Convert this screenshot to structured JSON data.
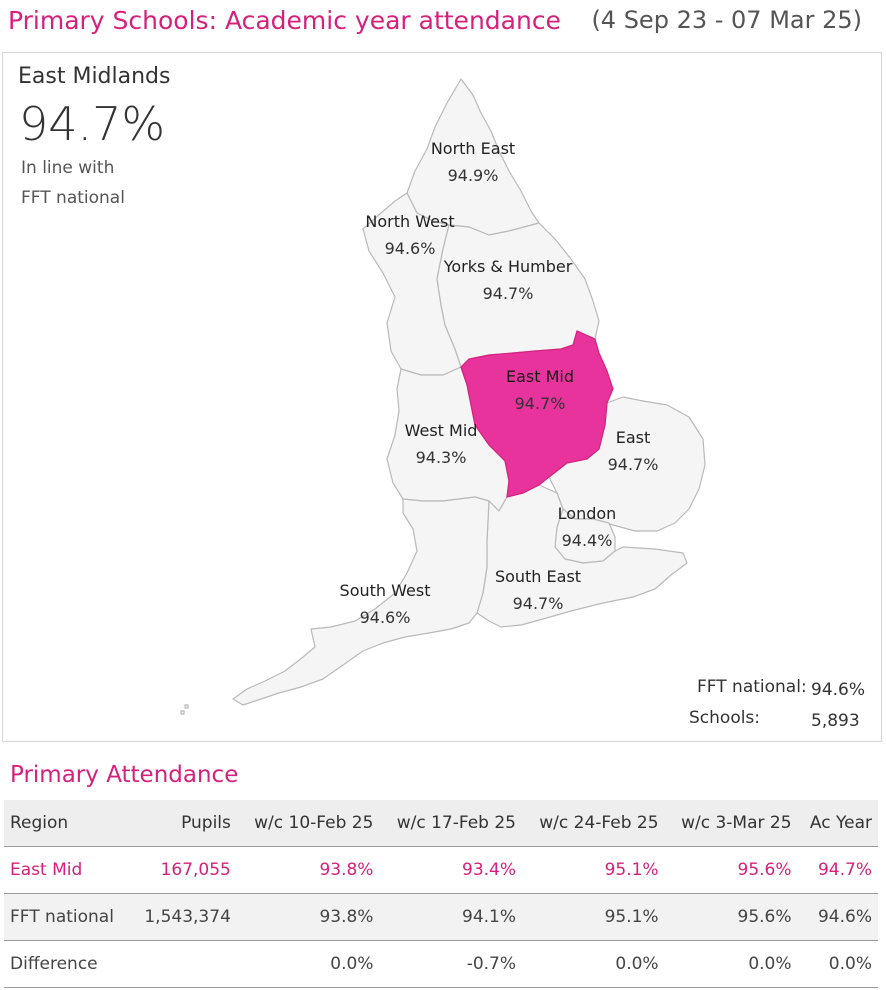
{
  "header": {
    "title": "Primary Schools: Academic year attendance",
    "date_range": "(4 Sep 23 - 07 Mar 25)"
  },
  "map_panel": {
    "selected_region": "East Midlands",
    "selected_value": "94.7%",
    "comparison_line1": "In line with",
    "comparison_line2": "FFT national",
    "highlight_color": "#e8339d",
    "regions": [
      {
        "id": "north-east",
        "name": "North East",
        "value": "94.9%"
      },
      {
        "id": "north-west",
        "name": "North West",
        "value": "94.6%"
      },
      {
        "id": "yorks-humber",
        "name": "Yorks & Humber",
        "value": "94.7%"
      },
      {
        "id": "east-mid",
        "name": "East Mid",
        "value": "94.7%"
      },
      {
        "id": "west-mid",
        "name": "West Mid",
        "value": "94.3%"
      },
      {
        "id": "east",
        "name": "East",
        "value": "94.7%"
      },
      {
        "id": "london",
        "name": "London",
        "value": "94.4%"
      },
      {
        "id": "south-east",
        "name": "South East",
        "value": "94.7%"
      },
      {
        "id": "south-west",
        "name": "South West",
        "value": "94.6%"
      }
    ],
    "footer": {
      "fft_label": "FFT national:",
      "fft_value": "94.6%",
      "schools_label": "Schools:",
      "schools_value": "5,893"
    }
  },
  "attendance": {
    "title": "Primary Attendance",
    "columns": [
      "Region",
      "Pupils",
      "w/c 10-Feb 25",
      "w/c 17-Feb 25",
      "w/c 24-Feb 25",
      "w/c 3-Mar 25",
      "Ac Year"
    ],
    "rows": [
      [
        "East Mid",
        "167,055",
        "93.8%",
        "93.4%",
        "95.1%",
        "95.6%",
        "94.7%"
      ],
      [
        "FFT national",
        "1,543,374",
        "93.8%",
        "94.1%",
        "95.1%",
        "95.6%",
        "94.6%"
      ],
      [
        "Difference",
        "",
        "0.0%",
        "-0.7%",
        "0.0%",
        "0.0%",
        "0.0%"
      ]
    ]
  }
}
